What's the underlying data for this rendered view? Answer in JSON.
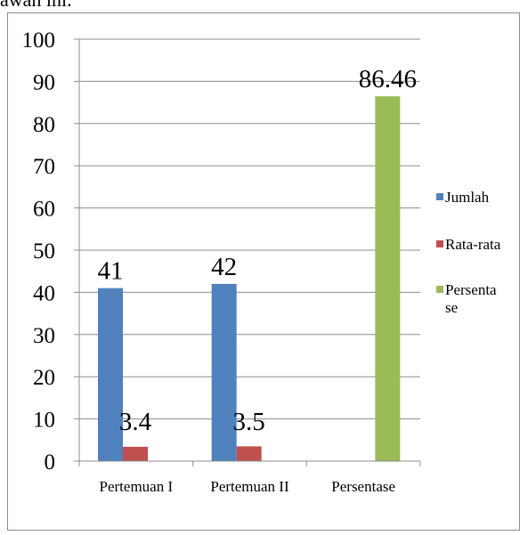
{
  "page": {
    "top_fragment": "awah ini."
  },
  "chart_data": {
    "type": "bar",
    "title": "",
    "xlabel": "",
    "ylabel": "",
    "ylim": [
      0,
      100
    ],
    "y_ticks": [
      0,
      10,
      20,
      30,
      40,
      50,
      60,
      70,
      80,
      90,
      100
    ],
    "grid": true,
    "legend_position": "right",
    "categories": [
      "Pertemuan I",
      "Pertemuan II",
      "Persentase"
    ],
    "series": [
      {
        "name": "Jumlah",
        "color": "#4f81bd",
        "values": [
          41,
          42,
          null
        ],
        "labels": [
          "41",
          "42",
          ""
        ]
      },
      {
        "name": "Rata-rata",
        "color": "#c0504d",
        "values": [
          3.4,
          3.5,
          null
        ],
        "labels": [
          "3.4",
          "3.5",
          ""
        ]
      },
      {
        "name": "Persentase",
        "legend_lines": [
          "Persenta",
          "se"
        ],
        "color": "#9bbb59",
        "values": [
          null,
          null,
          86.46
        ],
        "labels": [
          "",
          "",
          "86.46"
        ]
      }
    ]
  }
}
